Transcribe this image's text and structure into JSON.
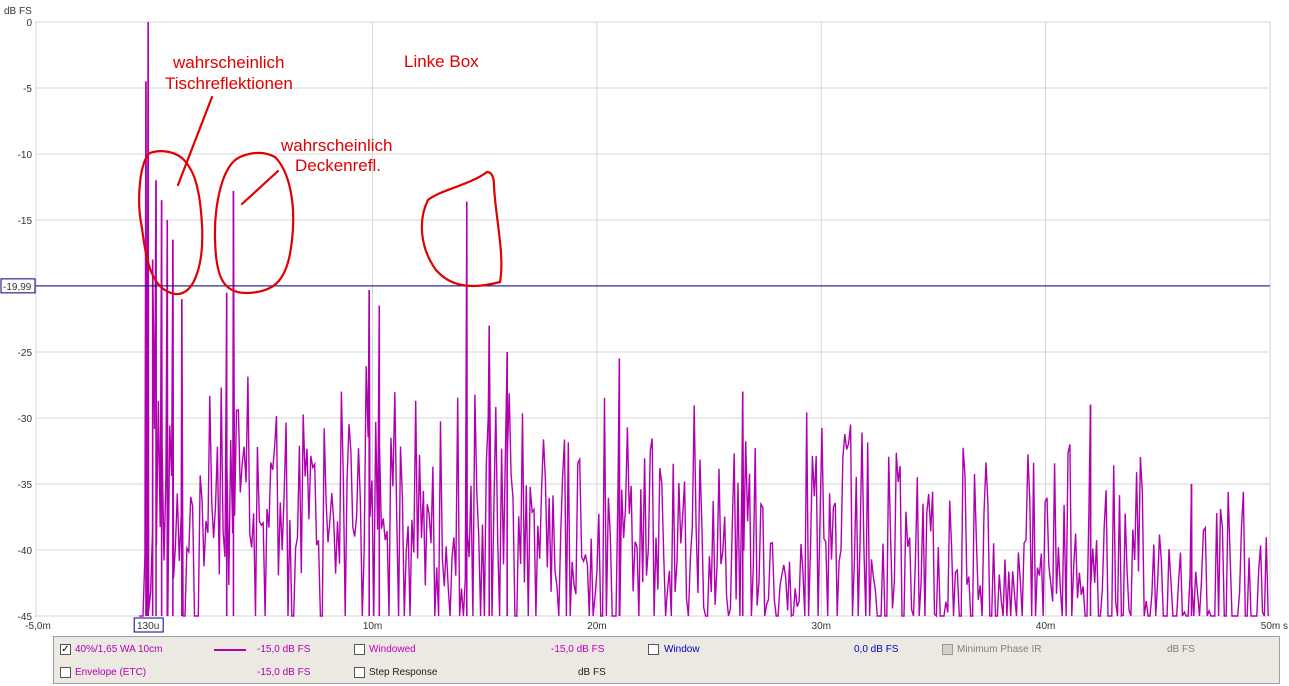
{
  "chart_data": {
    "type": "line",
    "title": "",
    "xlabel": "s",
    "ylabel": "dB FS",
    "xlim": [
      -5,
      50
    ],
    "ylim": [
      -45,
      0
    ],
    "x_ticks": [
      {
        "v": -5,
        "label": "-5,0m"
      },
      {
        "v": 0,
        "label": "130u"
      },
      {
        "v": 10,
        "label": "10m"
      },
      {
        "v": 20,
        "label": "20m"
      },
      {
        "v": 30,
        "label": "30m"
      },
      {
        "v": 40,
        "label": "40m"
      },
      {
        "v": 50,
        "label": "50m s"
      }
    ],
    "y_ticks": [
      {
        "v": 0,
        "label": "0"
      },
      {
        "v": -5,
        "label": "-5"
      },
      {
        "v": -10,
        "label": "-10"
      },
      {
        "v": -15,
        "label": "-15"
      },
      {
        "v": -20,
        "label": "-20"
      },
      {
        "v": -25,
        "label": "-25"
      },
      {
        "v": -30,
        "label": "-30"
      },
      {
        "v": -35,
        "label": "-35"
      },
      {
        "v": -40,
        "label": "-40"
      },
      {
        "v": -45,
        "label": "-45"
      }
    ],
    "grid": true,
    "cursor_level": -19.99,
    "cursor_label": "-19,99",
    "series": [
      {
        "color": "#b000b0",
        "peaks": [
          {
            "x": 0.0,
            "y": 0.0
          },
          {
            "x": -0.1,
            "y": -4.5
          },
          {
            "x": 0.35,
            "y": -12.0
          },
          {
            "x": 0.6,
            "y": -13.5
          },
          {
            "x": 0.85,
            "y": -15.0
          },
          {
            "x": 1.1,
            "y": -16.5
          },
          {
            "x": 0.2,
            "y": -18.0
          },
          {
            "x": 1.5,
            "y": -21.0
          },
          {
            "x": 3.8,
            "y": -12.8
          },
          {
            "x": 3.5,
            "y": -20.5
          },
          {
            "x": 9.85,
            "y": -20.3
          },
          {
            "x": 10.3,
            "y": -21.5
          },
          {
            "x": 14.2,
            "y": -13.6
          },
          {
            "x": 15.2,
            "y": -23.0
          },
          {
            "x": 16.0,
            "y": -25.0
          },
          {
            "x": 21.0,
            "y": -25.5
          },
          {
            "x": 26.5,
            "y": -28.0
          },
          {
            "x": 42.0,
            "y": -29.0
          },
          {
            "x": 46.5,
            "y": -35.0
          }
        ],
        "noise_envelope": [
          {
            "x": -0.4,
            "y": -42
          },
          {
            "x": 0.3,
            "y": -25
          },
          {
            "x": 2.0,
            "y": -28
          },
          {
            "x": 3.0,
            "y": -27
          },
          {
            "x": 5.0,
            "y": -26
          },
          {
            "x": 8.0,
            "y": -27
          },
          {
            "x": 10.0,
            "y": -24.5
          },
          {
            "x": 12.0,
            "y": -27
          },
          {
            "x": 15.0,
            "y": -27
          },
          {
            "x": 20.0,
            "y": -28
          },
          {
            "x": 25.0,
            "y": -28.5
          },
          {
            "x": 30.0,
            "y": -29.5
          },
          {
            "x": 35.0,
            "y": -30.5
          },
          {
            "x": 40.0,
            "y": -31
          },
          {
            "x": 45.0,
            "y": -33
          },
          {
            "x": 50.0,
            "y": -35
          }
        ]
      }
    ]
  },
  "annotations": {
    "title": "Linke Box",
    "table_label_1": "wahrscheinlich",
    "table_label_2": "Tischreflektionen",
    "ceiling_label_1": "wahrscheinlich",
    "ceiling_label_2": "Deckenrefl."
  },
  "legend": {
    "row1": {
      "series_checked": "✓",
      "series_name": "40%/1,65 WA 10cm",
      "series_level": "-15,0 dB FS",
      "windowed_label": "Windowed",
      "windowed_level": "-15,0 dB FS",
      "window_label": "Window",
      "window_level": "0,0 dB FS",
      "minphase_label": "Minimum Phase IR",
      "minphase_level": "dB FS"
    },
    "row2": {
      "envelope_label": "Envelope (ETC)",
      "envelope_level": "-15,0 dB FS",
      "step_label": "Step Response",
      "step_level": "dB FS"
    },
    "colors": {
      "series": "#b000b0",
      "windowed": "#c000c0",
      "window": "#0000c0",
      "disabled": "#808080"
    }
  }
}
